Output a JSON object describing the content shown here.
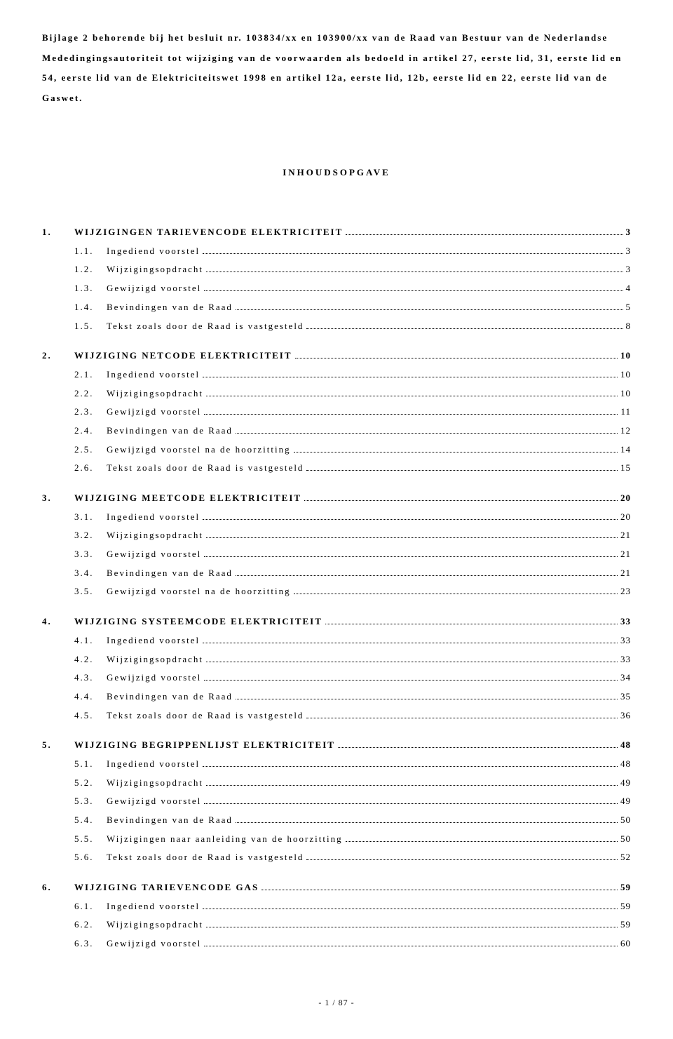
{
  "header_text": "Bijlage 2 behorende bij het besluit nr. 103834/xx en 103900/xx van de Raad van Bestuur van de Nederlandse Mededingingsautoriteit tot wijziging van de voorwaarden als bedoeld in artikel 27, eerste lid, 31, eerste lid en 54, eerste lid van de Elektriciteitswet 1998 en artikel 12a, eerste lid, 12b, eerste lid en 22, eerste lid van de Gaswet.",
  "toc_title": "INHOUDSOPGAVE",
  "sections": [
    {
      "num": "1.",
      "title": "WIJZIGINGEN TARIEVENCODE ELEKTRICITEIT",
      "page": "3",
      "items": [
        {
          "num": "1.1.",
          "label": "Ingediend voorstel",
          "page": "3"
        },
        {
          "num": "1.2.",
          "label": "Wijzigingsopdracht",
          "page": "3"
        },
        {
          "num": "1.3.",
          "label": "Gewijzigd voorstel",
          "page": "4"
        },
        {
          "num": "1.4.",
          "label": "Bevindingen van de Raad",
          "page": "5"
        },
        {
          "num": "1.5.",
          "label": "Tekst zoals door de Raad is vastgesteld",
          "page": "8"
        }
      ]
    },
    {
      "num": "2.",
      "title": "WIJZIGING NETCODE ELEKTRICITEIT",
      "page": "10",
      "items": [
        {
          "num": "2.1.",
          "label": "Ingediend voorstel",
          "page": "10"
        },
        {
          "num": "2.2.",
          "label": "Wijzigingsopdracht",
          "page": "10"
        },
        {
          "num": "2.3.",
          "label": "Gewijzigd voorstel",
          "page": "11"
        },
        {
          "num": "2.4.",
          "label": "Bevindingen van de Raad",
          "page": "12"
        },
        {
          "num": "2.5.",
          "label": "Gewijzigd voorstel na de hoorzitting",
          "page": "14"
        },
        {
          "num": "2.6.",
          "label": "Tekst zoals door de Raad is vastgesteld",
          "page": "15"
        }
      ]
    },
    {
      "num": "3.",
      "title": "WIJZIGING MEETCODE ELEKTRICITEIT",
      "page": "20",
      "items": [
        {
          "num": "3.1.",
          "label": "Ingediend voorstel",
          "page": "20"
        },
        {
          "num": "3.2.",
          "label": "Wijzigingsopdracht",
          "page": "21"
        },
        {
          "num": "3.3.",
          "label": "Gewijzigd voorstel",
          "page": "21"
        },
        {
          "num": "3.4.",
          "label": "Bevindingen van de Raad",
          "page": "21"
        },
        {
          "num": "3.5.",
          "label": "Gewijzigd voorstel na de hoorzitting",
          "page": "23"
        }
      ]
    },
    {
      "num": "4.",
      "title": "WIJZIGING SYSTEEMCODE ELEKTRICITEIT",
      "page": "33",
      "items": [
        {
          "num": "4.1.",
          "label": "Ingediend voorstel",
          "page": "33"
        },
        {
          "num": "4.2.",
          "label": "Wijzigingsopdracht",
          "page": "33"
        },
        {
          "num": "4.3.",
          "label": "Gewijzigd voorstel",
          "page": "34"
        },
        {
          "num": "4.4.",
          "label": "Bevindingen van de Raad",
          "page": "35"
        },
        {
          "num": "4.5.",
          "label": "Tekst zoals door de Raad is vastgesteld",
          "page": "36"
        }
      ]
    },
    {
      "num": "5.",
      "title": "WIJZIGING BEGRIPPENLIJST ELEKTRICITEIT",
      "page": "48",
      "items": [
        {
          "num": "5.1.",
          "label": "Ingediend voorstel",
          "page": "48"
        },
        {
          "num": "5.2.",
          "label": "Wijzigingsopdracht",
          "page": "49"
        },
        {
          "num": "5.3.",
          "label": "Gewijzigd voorstel",
          "page": "49"
        },
        {
          "num": "5.4.",
          "label": "Bevindingen van de Raad",
          "page": "50"
        },
        {
          "num": "5.5.",
          "label": "Wijzigingen naar aanleiding van de hoorzitting",
          "page": "50"
        },
        {
          "num": "5.6.",
          "label": "Tekst zoals door de Raad is vastgesteld",
          "page": "52"
        }
      ]
    },
    {
      "num": "6.",
      "title": "WIJZIGING TARIEVENCODE GAS",
      "page": "59",
      "items": [
        {
          "num": "6.1.",
          "label": "Ingediend voorstel",
          "page": "59"
        },
        {
          "num": "6.2.",
          "label": "Wijzigingsopdracht",
          "page": "59"
        },
        {
          "num": "6.3.",
          "label": "Gewijzigd voorstel",
          "page": "60"
        }
      ]
    }
  ],
  "footer": "- 1 / 87 -"
}
